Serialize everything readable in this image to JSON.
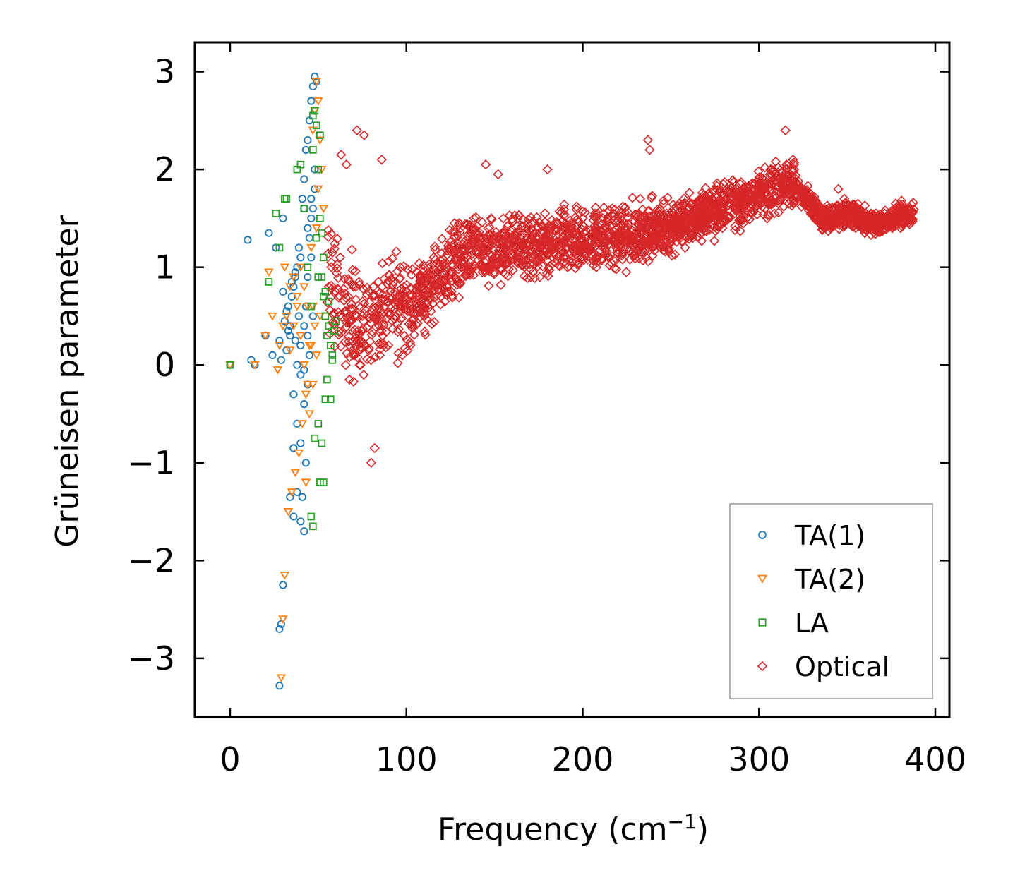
{
  "chart_data": {
    "type": "scatter",
    "xlabel": "Frequency (cm",
    "xlabel_sup": "−1",
    "xlabel_end": ")",
    "ylabel": "Grüneisen parameter",
    "xlim": [
      -20,
      408
    ],
    "ylim": [
      -3.6,
      3.3
    ],
    "xticks": [
      0,
      100,
      200,
      300,
      400
    ],
    "xtick_labels": [
      "0",
      "100",
      "200",
      "300",
      "400"
    ],
    "yticks": [
      -3,
      -2,
      -1,
      0,
      1,
      2,
      3
    ],
    "ytick_labels": [
      "−3",
      "−2",
      "−1",
      "0",
      "1",
      "2",
      "3"
    ],
    "legend_position": "lower-right",
    "series": [
      {
        "name": "TA(1)",
        "marker": "circle",
        "color": "#1f77b4",
        "x": [
          0,
          10,
          12,
          14,
          20,
          22,
          24,
          26,
          28,
          30,
          32,
          33,
          34,
          35,
          36,
          37,
          38,
          39,
          40,
          40,
          41,
          42,
          42,
          43,
          43,
          44,
          44,
          45,
          45,
          46,
          46,
          47,
          47,
          48,
          48,
          49,
          30,
          32,
          34,
          36,
          38,
          40,
          42,
          44,
          36,
          38,
          40,
          42,
          34,
          36,
          28,
          29,
          30,
          28,
          41,
          43,
          45,
          47,
          46,
          44,
          42,
          39,
          37,
          35,
          38,
          40,
          42,
          44,
          46,
          48,
          33,
          31,
          29,
          35,
          37
        ],
        "y": [
          0,
          1.28,
          0.05,
          0.0,
          0.3,
          1.35,
          0.1,
          1.2,
          0.25,
          1.5,
          0.15,
          0.6,
          0.3,
          0.7,
          0.8,
          0.9,
          1.0,
          0.5,
          1.1,
          0.2,
          1.7,
          0.4,
          1.9,
          0.6,
          2.2,
          0.9,
          2.3,
          1.3,
          2.5,
          1.5,
          2.7,
          1.6,
          2.85,
          1.8,
          2.95,
          2.9,
          0.75,
          0.55,
          0.4,
          -0.3,
          -0.6,
          -0.8,
          -0.4,
          -0.2,
          -0.85,
          -1.3,
          -1.6,
          -1.7,
          -1.35,
          -1.55,
          -2.7,
          -2.65,
          -2.25,
          -3.28,
          -1.35,
          -1.0,
          0.1,
          0.5,
          1.1,
          1.4,
          1.6,
          1.2,
          0.95,
          0.7,
          0.0,
          -0.1,
          -0.05,
          0.3,
          1.7,
          2.0,
          0.35,
          0.45,
          0.05,
          0.85,
          0.25
        ]
      },
      {
        "name": "TA(2)",
        "marker": "triangle-down",
        "color": "#ff7f0e",
        "x": [
          0,
          14,
          20,
          22,
          24,
          27,
          28,
          30,
          31,
          32,
          34,
          36,
          38,
          40,
          42,
          44,
          46,
          47,
          48,
          49,
          50,
          51,
          52,
          53,
          33,
          35,
          37,
          39,
          41,
          43,
          45,
          47,
          31,
          30,
          29,
          49,
          50,
          48,
          46,
          44,
          42,
          40,
          38,
          36,
          34,
          45,
          47,
          49,
          51,
          43
        ],
        "y": [
          0,
          0.0,
          0.3,
          0.95,
          0.5,
          -0.05,
          0.2,
          0.4,
          1.0,
          0.5,
          0.8,
          0.9,
          0.7,
          0.3,
          0.0,
          -0.2,
          1.2,
          2.4,
          2.6,
          2.9,
          2.7,
          2.3,
          2.0,
          1.6,
          -1.5,
          -1.3,
          -1.1,
          -0.9,
          -0.6,
          -0.3,
          0.2,
          0.6,
          -2.15,
          -2.6,
          -3.2,
          1.4,
          1.8,
          0.4,
          0.2,
          0.6,
          0.8,
          1.0,
          0.6,
          0.4,
          0.15,
          -0.5,
          -0.2,
          0.1,
          0.5,
          -1.2
        ]
      },
      {
        "name": "LA",
        "marker": "square",
        "color": "#2ca02c",
        "x": [
          0,
          22,
          26,
          28,
          31,
          32,
          38,
          40,
          42,
          44,
          46,
          47,
          48,
          49,
          50,
          51,
          52,
          53,
          54,
          55,
          56,
          57,
          58,
          59,
          60,
          48,
          50,
          52,
          54,
          46,
          47,
          51,
          53,
          55,
          57,
          49,
          52,
          53,
          50,
          54,
          56,
          58,
          51,
          47
        ],
        "y": [
          0,
          0.85,
          1.55,
          1.2,
          1.7,
          1.7,
          2.0,
          2.05,
          1.6,
          1.0,
          0.6,
          2.2,
          2.6,
          2.45,
          2.0,
          1.5,
          0.9,
          0.7,
          0.5,
          0.3,
          0.4,
          0.2,
          0.1,
          0.35,
          0.45,
          -0.75,
          -0.6,
          -0.8,
          -0.35,
          -1.55,
          -1.65,
          -1.2,
          -1.2,
          -0.15,
          -0.35,
          1.3,
          1.35,
          1.1,
          0.9,
          0.75,
          0.65,
          0.05,
          2.35,
          2.55
        ]
      },
      {
        "name": "Optical",
        "marker": "diamond",
        "color": "#d62728",
        "x": [],
        "y": []
      }
    ]
  }
}
